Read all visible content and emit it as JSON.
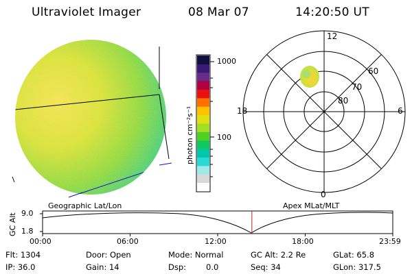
{
  "header": {
    "title": "Ultraviolet Imager",
    "date": "08 Mar 07",
    "time": "14:20:50 UT"
  },
  "colorbar": {
    "ticks": [
      "1000",
      "100"
    ],
    "unit_label": "photon cm⁻²s⁻¹",
    "colors": [
      "#ffffff",
      "#d8d8d8",
      "#9eeaea",
      "#2ad8d8",
      "#00c8a8",
      "#10c860",
      "#50d020",
      "#a0e020",
      "#e0e010",
      "#ffc000",
      "#ff7000",
      "#e81010",
      "#b00040",
      "#6a2a8a",
      "#3a1a78",
      "#101040"
    ]
  },
  "left_panel": {
    "caption": "Geographic Lat/Lon"
  },
  "right_panel": {
    "caption": "Apex MLat/MLT",
    "mlt_labels": {
      "top": "12",
      "left": "18",
      "right": "6",
      "bottom": "0"
    },
    "lat_labels": [
      "60",
      "70",
      "80"
    ]
  },
  "altitude_plot": {
    "ylabel": "GC Alt",
    "yticks": [
      "9.0",
      "1.8"
    ],
    "xticks": [
      "00:00",
      "06:00",
      "12:00",
      "18:00",
      "23:59"
    ],
    "current_time_fraction": 0.5977
  },
  "info": {
    "flt": "Flt: 1304",
    "ip": "IP: 36.0",
    "door": "Door: Open",
    "gain": "Gain: 14",
    "mode": "Mode: Normal",
    "dsp_label": "Dsp:",
    "dsp_value": "0.0",
    "gcalt": "GC Alt: 2.2 Re",
    "seq": "Seq: 34",
    "glat": "GLat:  65.8",
    "glon": "GLon: 317.5"
  }
}
